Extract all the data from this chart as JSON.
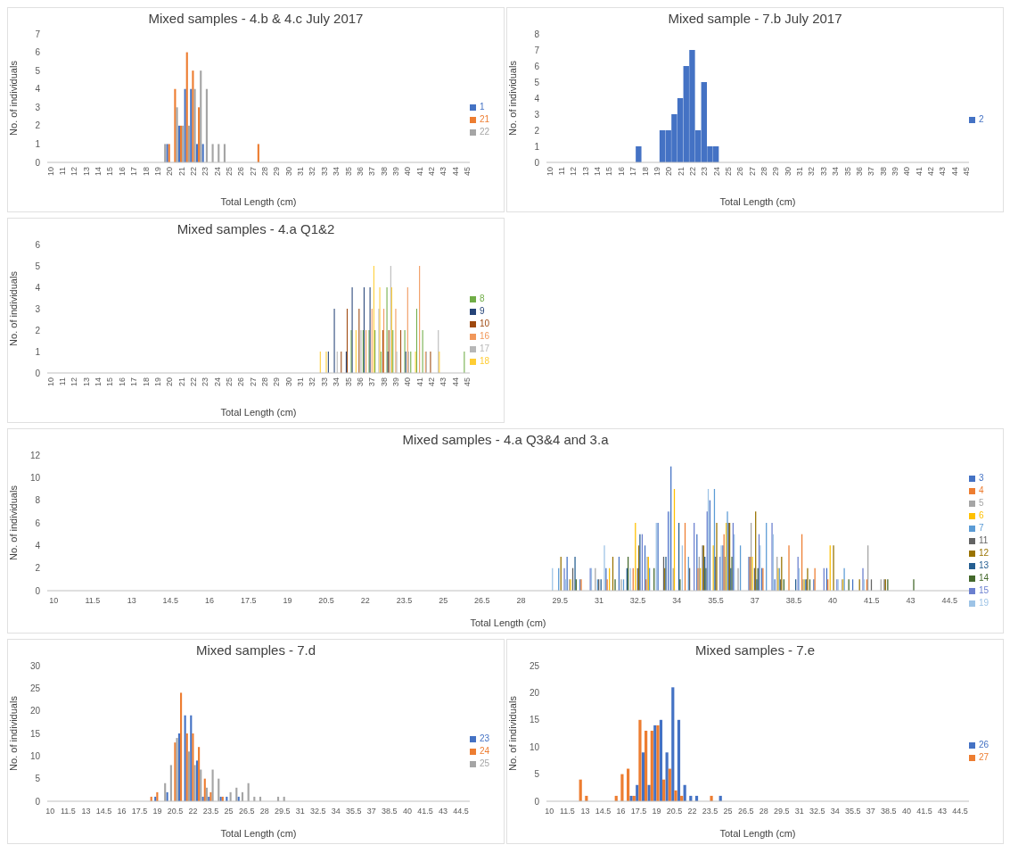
{
  "chart_data": [
    {
      "type": "bar",
      "title": "Mixed samples - 4.b & 4.c July 2017",
      "xlabel": "Total Length (cm)",
      "ylabel": "No. of individuals",
      "xlim": [
        9.75,
        45.25
      ],
      "xticks": [
        10,
        11,
        12,
        13,
        14,
        15,
        16,
        17,
        18,
        19,
        20,
        21,
        22,
        23,
        24,
        25,
        26,
        27,
        28,
        29,
        30,
        31,
        32,
        33,
        34,
        35,
        36,
        37,
        38,
        39,
        40,
        41,
        42,
        43,
        44,
        45
      ],
      "ylim": [
        0,
        7
      ],
      "yticks": [
        0,
        1,
        2,
        3,
        4,
        5,
        6,
        7
      ],
      "grid": false,
      "legend": "right",
      "series": [
        {
          "name": "1",
          "color": "#4472c4",
          "x": [
            20,
            21,
            21.5,
            22,
            22.5,
            23
          ],
          "values": [
            1,
            2,
            4,
            4,
            1,
            1
          ]
        },
        {
          "name": "21",
          "color": "#ed7d31",
          "x": [
            20,
            20.5,
            21,
            21.5,
            22,
            22.5,
            27.5
          ],
          "values": [
            1,
            4,
            2,
            6,
            5,
            3,
            1
          ]
        },
        {
          "name": "22",
          "color": "#a5a5a5",
          "x": [
            19.5,
            20.5,
            21,
            21.5,
            22,
            22.5,
            23,
            23.5,
            24,
            24.5
          ],
          "values": [
            1,
            3,
            2,
            2,
            4,
            5,
            4,
            1,
            1,
            1
          ]
        }
      ]
    },
    {
      "type": "bar",
      "title": "Mixed sample - 7.b July 2017",
      "xlabel": "Total Length (cm)",
      "ylabel": "No. of individuals",
      "xlim": [
        9.75,
        45.25
      ],
      "xticks": [
        10,
        11,
        12,
        13,
        14,
        15,
        16,
        17,
        18,
        19,
        20,
        21,
        22,
        23,
        24,
        25,
        26,
        27,
        28,
        29,
        30,
        31,
        32,
        33,
        34,
        35,
        36,
        37,
        38,
        39,
        40,
        41,
        42,
        43,
        44,
        45
      ],
      "ylim": [
        0,
        8
      ],
      "yticks": [
        0,
        1,
        2,
        3,
        4,
        5,
        6,
        7,
        8
      ],
      "grid": false,
      "legend": "right",
      "series": [
        {
          "name": "2",
          "color": "#4472c4",
          "x": [
            17.5,
            19.5,
            20,
            20.5,
            21,
            21.5,
            22,
            22.5,
            23,
            23.5,
            24
          ],
          "values": [
            1,
            2,
            2,
            3,
            4,
            6,
            7,
            2,
            5,
            1,
            1
          ]
        }
      ]
    },
    {
      "type": "bar",
      "title": "Mixed samples - 4.a Q1&2",
      "xlabel": "Total Length (cm)",
      "ylabel": "No. of individuals",
      "xlim": [
        9.75,
        45.25
      ],
      "xticks": [
        10,
        11,
        12,
        13,
        14,
        15,
        16,
        17,
        18,
        19,
        20,
        21,
        22,
        23,
        24,
        25,
        26,
        27,
        28,
        29,
        30,
        31,
        32,
        33,
        34,
        35,
        36,
        37,
        38,
        39,
        40,
        41,
        42,
        43,
        44,
        45
      ],
      "ylim": [
        0,
        6
      ],
      "yticks": [
        0,
        1,
        2,
        3,
        4,
        5,
        6
      ],
      "grid": false,
      "legend": "right",
      "series": [
        {
          "name": "8",
          "color": "#70ad47",
          "x": [
            35.5,
            36.5,
            37,
            37.5,
            38,
            38.5,
            39,
            40,
            40.5,
            41,
            41.5,
            45
          ],
          "values": [
            2,
            2,
            2,
            2,
            1,
            4,
            2,
            2,
            1,
            3,
            2,
            1
          ]
        },
        {
          "name": "9",
          "color": "#264478",
          "x": [
            33.5,
            34,
            35,
            35.5,
            36.5,
            37,
            38.5,
            40
          ],
          "values": [
            1,
            3,
            1,
            4,
            4,
            4,
            1,
            1
          ]
        },
        {
          "name": "10",
          "color": "#9e480e",
          "x": [
            34.5,
            35,
            36,
            38,
            38.5,
            39.5,
            42
          ],
          "values": [
            1,
            3,
            3,
            2,
            2,
            2,
            1
          ]
        },
        {
          "name": "16",
          "color": "#f1975a",
          "x": [
            36.5,
            37,
            38,
            39,
            40,
            41,
            41.5
          ],
          "values": [
            2,
            3,
            3,
            3,
            4,
            5,
            1
          ]
        },
        {
          "name": "17",
          "color": "#b7b7b7",
          "x": [
            34,
            36,
            37.5,
            38.5,
            39,
            40,
            41.5,
            42.5
          ],
          "values": [
            1,
            2,
            3,
            5,
            1,
            1,
            1,
            2
          ]
        },
        {
          "name": "18",
          "color": "#ffcd33",
          "x": [
            32.5,
            33,
            35.5,
            37,
            37.5,
            38.5,
            40.5,
            42.5
          ],
          "values": [
            1,
            1,
            2,
            5,
            4,
            4,
            1,
            1
          ]
        }
      ]
    },
    {
      "type": "bar",
      "title": "Mixed samples - 4.a Q3&4 and 3.a",
      "xlabel": "Total Length (cm)",
      "ylabel": "No. of individuals",
      "xlim": [
        9.75,
        45.25
      ],
      "xticks": [
        10,
        11.5,
        13,
        14.5,
        16,
        17.5,
        19,
        20.5,
        22,
        23.5,
        25,
        26.5,
        28,
        29.5,
        31,
        32.5,
        34,
        35.5,
        37,
        38.5,
        40,
        41.5,
        43,
        44.5
      ],
      "ylim": [
        0,
        12
      ],
      "yticks": [
        0,
        2,
        4,
        6,
        8,
        10,
        12
      ],
      "grid": false,
      "legend": "right",
      "series": [
        {
          "name": "3",
          "color": "#4472c4",
          "x": [
            30,
            30.5,
            31.5,
            32,
            33,
            33.5,
            34,
            35,
            35.5,
            36,
            37,
            37.5,
            38,
            39.5,
            40,
            41
          ],
          "values": [
            3,
            1,
            2,
            3,
            4,
            6,
            11,
            5,
            8,
            4,
            3,
            2,
            1,
            1,
            2,
            1
          ]
        },
        {
          "name": "4",
          "color": "#ed7d31",
          "x": [
            30.5,
            31.5,
            32.5,
            33,
            34.5,
            35,
            36,
            37,
            37.5,
            38.5,
            39,
            39.5,
            40,
            41.5
          ],
          "values": [
            1,
            1,
            2,
            1,
            6,
            2,
            5,
            3,
            2,
            4,
            5,
            2,
            1,
            1
          ]
        },
        {
          "name": "5",
          "color": "#a5a5a5",
          "x": [
            30,
            31,
            32,
            33,
            34,
            35,
            36,
            36.5,
            37,
            38,
            39,
            40.5,
            41.5,
            42
          ],
          "values": [
            1,
            2,
            1,
            3,
            2,
            3,
            3,
            2,
            6,
            3,
            1,
            1,
            4,
            1
          ]
        },
        {
          "name": "6",
          "color": "#ffc000",
          "x": [
            30,
            31.5,
            32.5,
            33,
            34,
            35,
            35.5,
            36,
            37,
            38,
            39,
            40,
            40.5
          ],
          "values": [
            1,
            2,
            6,
            3,
            9,
            2,
            4,
            6,
            3,
            2,
            1,
            4,
            1
          ]
        },
        {
          "name": "7",
          "color": "#5b9bd5",
          "x": [
            29.5,
            31,
            32,
            33,
            34.5,
            35.5,
            36,
            36.5,
            37.5,
            38,
            39,
            40.5
          ],
          "values": [
            2,
            1,
            1,
            2,
            3,
            9,
            7,
            4,
            6,
            2,
            1,
            2
          ]
        },
        {
          "name": "11",
          "color": "#636363",
          "x": [
            30,
            31,
            32.5,
            33.5,
            34.5,
            35,
            35.5,
            36,
            37,
            38,
            39,
            41.5,
            42
          ],
          "values": [
            2,
            1,
            2,
            3,
            2,
            4,
            3,
            6,
            2,
            1,
            1,
            1,
            1
          ]
        },
        {
          "name": "12",
          "color": "#997300",
          "x": [
            29.5,
            31.5,
            32.5,
            33.5,
            35,
            35.5,
            36,
            37,
            38,
            39,
            40,
            41,
            42
          ],
          "values": [
            3,
            3,
            4,
            2,
            4,
            6,
            6,
            7,
            3,
            2,
            4,
            1,
            1
          ]
        },
        {
          "name": "13",
          "color": "#255e91",
          "x": [
            30,
            31,
            32,
            32.5,
            33.5,
            34,
            35,
            36,
            37,
            38.5
          ],
          "values": [
            3,
            1,
            2,
            5,
            3,
            6,
            3,
            2,
            1,
            1
          ]
        },
        {
          "name": "14",
          "color": "#43682b",
          "x": [
            30,
            31.5,
            32,
            33,
            34,
            35,
            36,
            37,
            38,
            39,
            40.5,
            42,
            43
          ],
          "values": [
            1,
            1,
            3,
            2,
            1,
            2,
            3,
            2,
            1,
            1,
            1,
            1,
            1
          ]
        },
        {
          "name": "15",
          "color": "#6a7fcf",
          "x": [
            29.5,
            30.5,
            32.5,
            33.5,
            34.5,
            35,
            35.5,
            36,
            37,
            37.5,
            38.5,
            39.5,
            40,
            41
          ],
          "values": [
            2,
            2,
            5,
            7,
            6,
            7,
            3,
            6,
            5,
            6,
            3,
            2,
            1,
            2
          ]
        },
        {
          "name": "19",
          "color": "#9dc3e6",
          "x": [
            29,
            29.5,
            30.5,
            31,
            32,
            33,
            33.5,
            34,
            35,
            35.5,
            36,
            37,
            37.5,
            38.5,
            40,
            41
          ],
          "values": [
            2,
            1,
            2,
            4,
            2,
            6,
            7,
            4,
            9,
            4,
            5,
            4,
            5,
            2,
            1,
            1
          ]
        }
      ]
    },
    {
      "type": "bar",
      "title": "Mixed samples - 7.d",
      "xlabel": "Total Length (cm)",
      "ylabel": "No. of individuals",
      "xlim": [
        9.75,
        45.25
      ],
      "xticks": [
        10,
        11.5,
        13,
        14.5,
        16,
        17.5,
        19,
        20.5,
        22,
        23.5,
        25,
        26.5,
        28,
        29.5,
        31,
        32.5,
        34,
        35.5,
        37,
        38.5,
        40,
        41.5,
        43,
        44.5
      ],
      "ylim": [
        0,
        30
      ],
      "yticks": [
        0,
        5,
        10,
        15,
        20,
        25,
        30
      ],
      "grid": false,
      "legend": "right",
      "series": [
        {
          "name": "23",
          "color": "#4472c4",
          "x": [
            19,
            20,
            21,
            21.5,
            22,
            22.5,
            23,
            23.5,
            24.5,
            25,
            26
          ],
          "values": [
            1,
            2,
            15,
            19,
            19,
            9,
            1,
            1,
            1,
            1,
            1
          ]
        },
        {
          "name": "24",
          "color": "#ed7d31",
          "x": [
            18.5,
            19,
            20.5,
            21,
            21.5,
            22,
            22.5,
            23,
            23.5,
            24.5
          ],
          "values": [
            1,
            2,
            13,
            24,
            15,
            15,
            12,
            5,
            2,
            1
          ]
        },
        {
          "name": "25",
          "color": "#a5a5a5",
          "x": [
            19.5,
            20,
            20.5,
            21.5,
            22,
            22.5,
            23,
            23.5,
            24,
            25,
            25.5,
            26,
            26.5,
            27,
            27.5,
            29,
            29.5
          ],
          "values": [
            4,
            8,
            14,
            11,
            8,
            7,
            3,
            7,
            5,
            2,
            3,
            2,
            4,
            1,
            1,
            1,
            1
          ]
        }
      ]
    },
    {
      "type": "bar",
      "title": "Mixed samples - 7.e",
      "xlabel": "Total Length (cm)",
      "ylabel": "No. of individuals",
      "xlim": [
        9.75,
        45.25
      ],
      "xticks": [
        10,
        11.5,
        13,
        14.5,
        16,
        17.5,
        19,
        20.5,
        22,
        23.5,
        25,
        26.5,
        28,
        29.5,
        31,
        32.5,
        34,
        35.5,
        37,
        38.5,
        40,
        41.5,
        43,
        44.5
      ],
      "ylim": [
        0,
        25
      ],
      "yticks": [
        0,
        5,
        10,
        15,
        20,
        25
      ],
      "grid": false,
      "legend": "right",
      "series": [
        {
          "name": "26",
          "color": "#4472c4",
          "x": [
            17,
            17.5,
            18,
            18.5,
            19,
            19.5,
            20,
            20.5,
            21,
            21.5,
            22,
            22.5,
            24.5
          ],
          "values": [
            1,
            3,
            9,
            3,
            14,
            15,
            9,
            21,
            15,
            3,
            1,
            1,
            1
          ]
        },
        {
          "name": "27",
          "color": "#ed7d31",
          "x": [
            12.5,
            13,
            15.5,
            16,
            16.5,
            17,
            17.5,
            18,
            18.5,
            19,
            19.5,
            20,
            20.5,
            21,
            23.5
          ],
          "values": [
            4,
            1,
            1,
            5,
            6,
            1,
            15,
            13,
            13,
            14,
            4,
            6,
            2,
            1,
            1
          ]
        }
      ]
    }
  ]
}
